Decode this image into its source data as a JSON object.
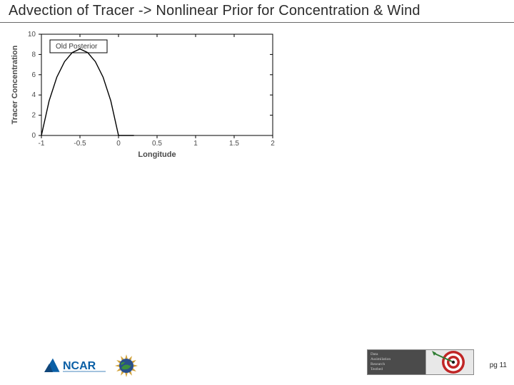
{
  "title": "Advection of Tracer -> Nonlinear Prior for Concentration & Wind",
  "chart": {
    "type": "line",
    "xlabel": "Longitude",
    "ylabel": "Tracer Concentration",
    "xlim": [
      -1,
      2
    ],
    "ylim": [
      0,
      10
    ],
    "xticks": [
      -1,
      -0.5,
      0,
      0.5,
      1,
      1.5,
      2
    ],
    "yticks": [
      0,
      2,
      4,
      6,
      8,
      10
    ],
    "background_color": "#ffffff",
    "axis_color": "#000000",
    "tick_label_color": "#4a4a4a",
    "label_fontsize": 11,
    "tick_fontsize": 10,
    "legend": {
      "label": "Old Posterior",
      "position": "upper-left"
    },
    "series": [
      {
        "name": "Old Posterior",
        "color": "#000000",
        "line_width": 1.4,
        "x": [
          -1.0,
          -0.9,
          -0.8,
          -0.7,
          -0.6,
          -0.5,
          -0.4,
          -0.3,
          -0.2,
          -0.1,
          0.0,
          0.1,
          0.2
        ],
        "y": [
          0.0,
          3.42,
          5.76,
          7.29,
          8.19,
          8.55,
          8.19,
          7.29,
          5.76,
          3.42,
          0.0,
          0.0,
          0.0
        ]
      }
    ]
  },
  "footer": {
    "ncar_text": "NCAR",
    "ncar_color": "#0a5fa6",
    "nsf_colors": {
      "outer": "#d1a23a",
      "globe": "#2a4f8a",
      "land": "#3d8f3d"
    },
    "dart_lines": [
      "Data",
      "Assimilation",
      "Research",
      "Testbed"
    ],
    "dart_target_colors": [
      "#c02626",
      "#ffffff",
      "#c02626",
      "#ffffff",
      "#1a1a1a"
    ],
    "dart_dart_color": "#2f7d32",
    "page_label": "pg 11"
  }
}
